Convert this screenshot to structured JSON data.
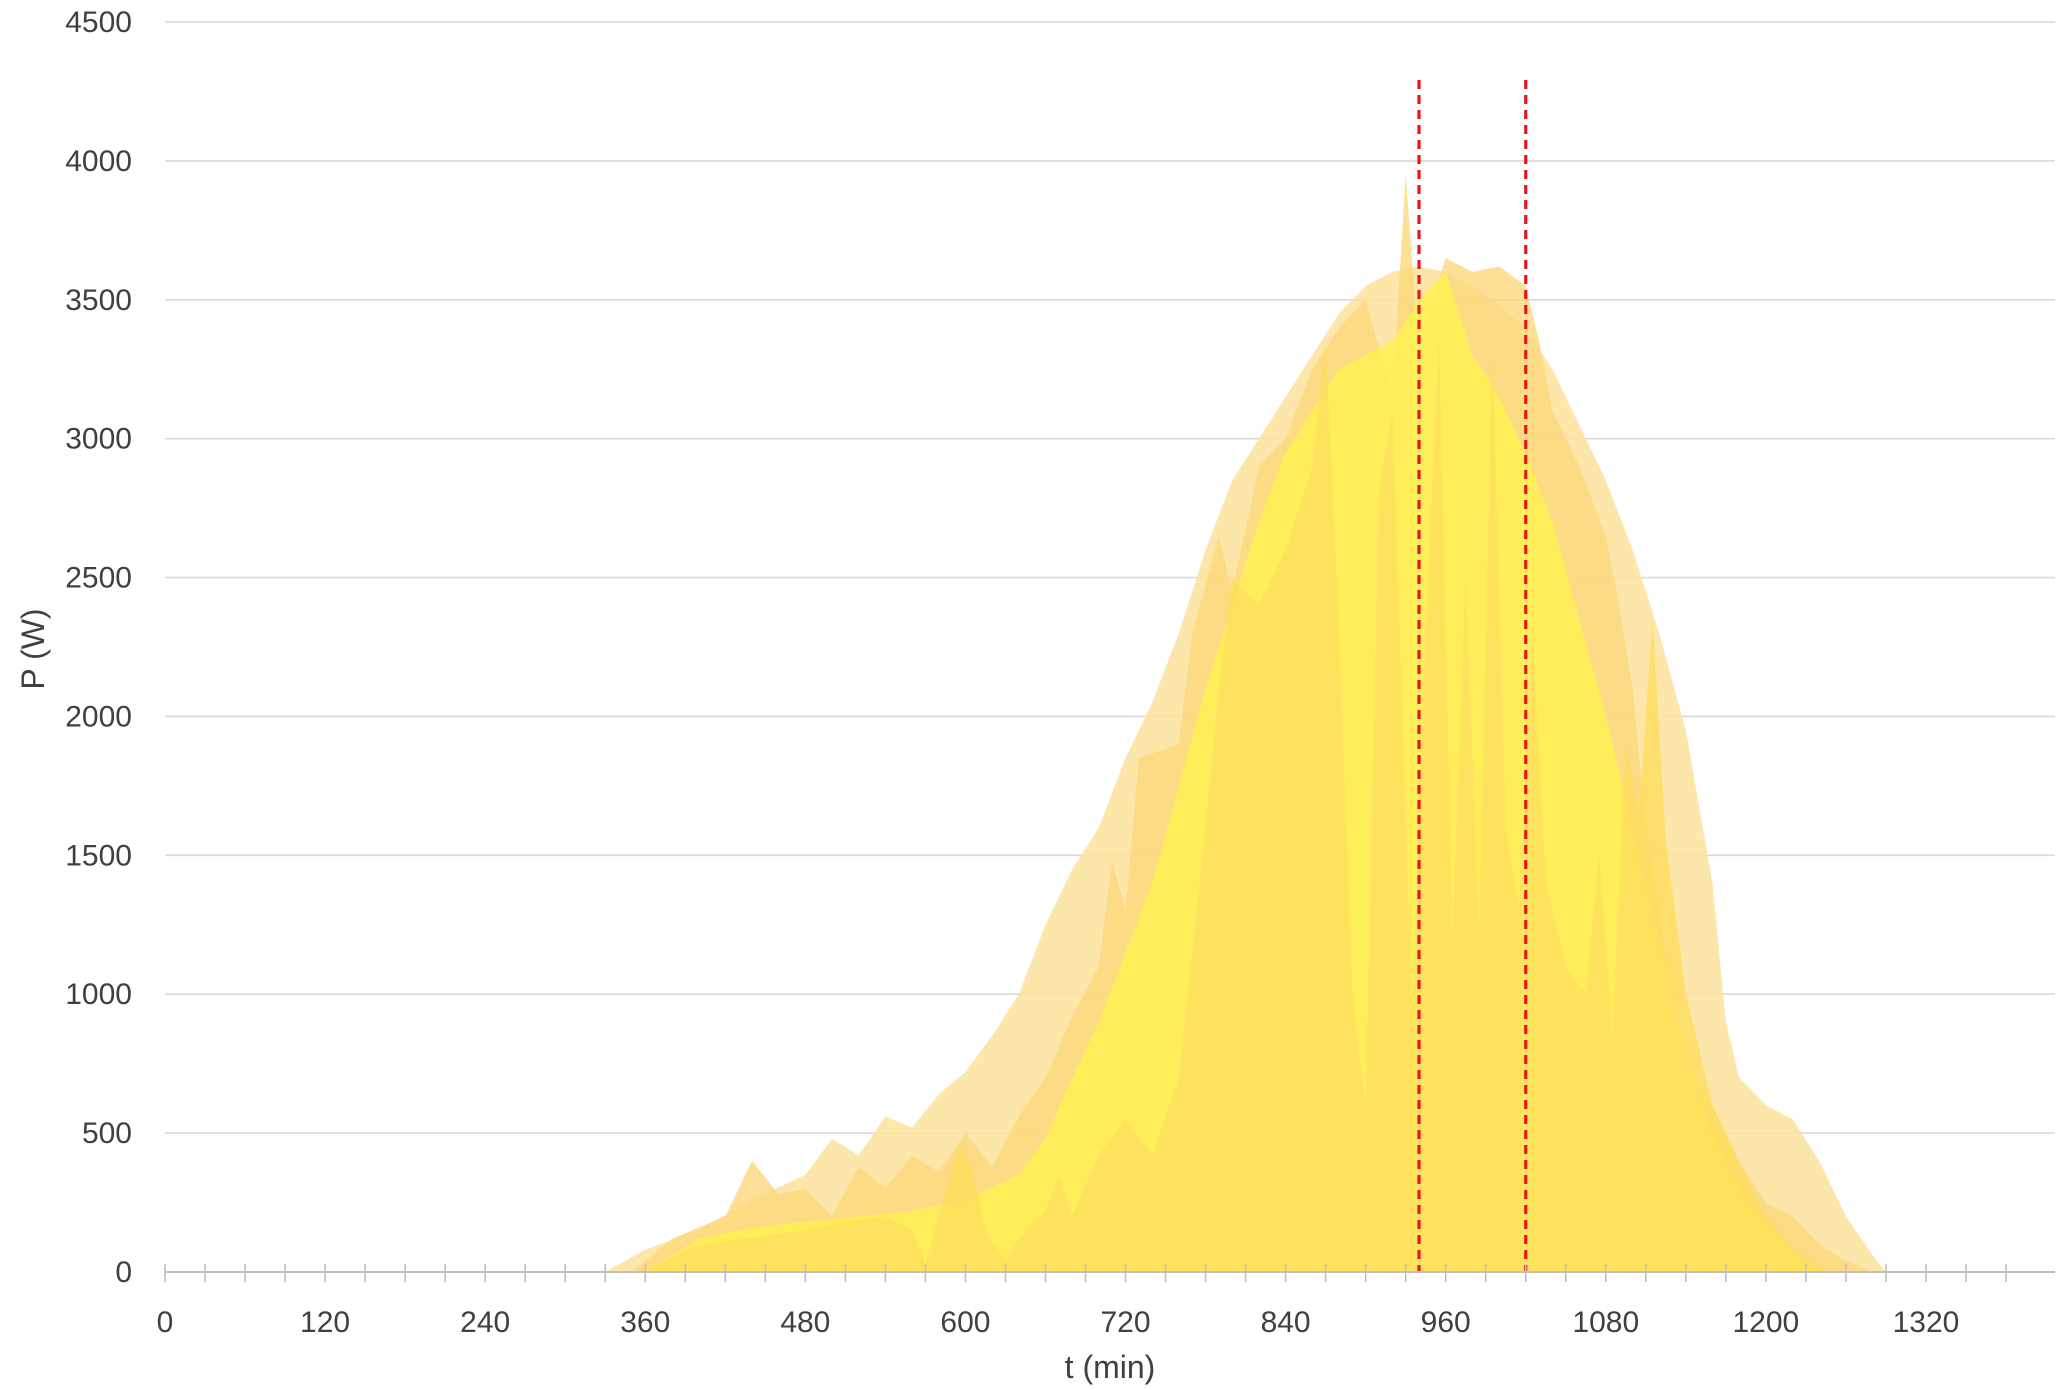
{
  "chart_data": {
    "type": "area",
    "title": "",
    "xlabel": "t (min)",
    "ylabel": "P (W)",
    "xlim": [
      0,
      1380
    ],
    "ylim": [
      0,
      4500
    ],
    "x_ticks": [
      "0",
      "120",
      "240",
      "360",
      "480",
      "600",
      "720",
      "840",
      "960",
      "1080",
      "1200",
      "1320"
    ],
    "y_ticks": [
      "0",
      "500",
      "1000",
      "1500",
      "2000",
      "2500",
      "3000",
      "3500",
      "4000",
      "4500"
    ],
    "grid": "horizontal",
    "legend": "none",
    "markers": [
      {
        "x": 940,
        "color": "#e8161b"
      },
      {
        "x": 1020,
        "color": "#e8161b"
      }
    ],
    "series": [
      {
        "color": "#fde29a",
        "points": [
          [
            330,
            0
          ],
          [
            360,
            80
          ],
          [
            400,
            150
          ],
          [
            440,
            260
          ],
          [
            480,
            350
          ],
          [
            500,
            480
          ],
          [
            520,
            420
          ],
          [
            540,
            560
          ],
          [
            560,
            520
          ],
          [
            580,
            640
          ],
          [
            600,
            720
          ],
          [
            620,
            850
          ],
          [
            640,
            1000
          ],
          [
            660,
            1250
          ],
          [
            680,
            1450
          ],
          [
            700,
            1600
          ],
          [
            720,
            1850
          ],
          [
            740,
            2050
          ],
          [
            760,
            2300
          ],
          [
            780,
            2600
          ],
          [
            800,
            2850
          ],
          [
            820,
            3000
          ],
          [
            840,
            3150
          ],
          [
            860,
            3300
          ],
          [
            880,
            3450
          ],
          [
            900,
            3550
          ],
          [
            920,
            3600
          ],
          [
            940,
            3620
          ],
          [
            960,
            3600
          ],
          [
            980,
            3550
          ],
          [
            1000,
            3480
          ],
          [
            1020,
            3400
          ],
          [
            1040,
            3250
          ],
          [
            1060,
            3050
          ],
          [
            1080,
            2850
          ],
          [
            1100,
            2600
          ],
          [
            1120,
            2300
          ],
          [
            1140,
            1950
          ],
          [
            1160,
            1400
          ],
          [
            1170,
            900
          ],
          [
            1180,
            700
          ],
          [
            1200,
            600
          ],
          [
            1220,
            550
          ],
          [
            1240,
            400
          ],
          [
            1260,
            200
          ],
          [
            1280,
            60
          ],
          [
            1290,
            0
          ]
        ]
      },
      {
        "color": "#fdd87a",
        "points": [
          [
            350,
            0
          ],
          [
            380,
            120
          ],
          [
            420,
            200
          ],
          [
            440,
            400
          ],
          [
            460,
            280
          ],
          [
            480,
            300
          ],
          [
            500,
            200
          ],
          [
            520,
            380
          ],
          [
            540,
            300
          ],
          [
            560,
            420
          ],
          [
            580,
            360
          ],
          [
            600,
            500
          ],
          [
            620,
            380
          ],
          [
            640,
            560
          ],
          [
            660,
            700
          ],
          [
            680,
            920
          ],
          [
            700,
            1100
          ],
          [
            710,
            1480
          ],
          [
            720,
            1300
          ],
          [
            730,
            1850
          ],
          [
            760,
            1900
          ],
          [
            770,
            2300
          ],
          [
            790,
            2650
          ],
          [
            800,
            2450
          ],
          [
            820,
            2900
          ],
          [
            840,
            3000
          ],
          [
            860,
            3250
          ],
          [
            880,
            3400
          ],
          [
            900,
            3500
          ],
          [
            920,
            3150
          ],
          [
            930,
            3950
          ],
          [
            940,
            3300
          ],
          [
            950,
            3500
          ],
          [
            960,
            3650
          ],
          [
            980,
            3600
          ],
          [
            1000,
            3620
          ],
          [
            1020,
            3550
          ],
          [
            1030,
            3350
          ],
          [
            1040,
            3100
          ],
          [
            1060,
            2900
          ],
          [
            1080,
            2650
          ],
          [
            1090,
            2400
          ],
          [
            1100,
            2100
          ],
          [
            1110,
            1600
          ],
          [
            1120,
            1300
          ],
          [
            1130,
            900
          ],
          [
            1140,
            700
          ],
          [
            1160,
            600
          ],
          [
            1180,
            400
          ],
          [
            1200,
            250
          ],
          [
            1220,
            200
          ],
          [
            1240,
            100
          ],
          [
            1260,
            40
          ],
          [
            1280,
            0
          ]
        ]
      },
      {
        "color": "#fff14f",
        "points": [
          [
            360,
            0
          ],
          [
            400,
            120
          ],
          [
            440,
            160
          ],
          [
            480,
            180
          ],
          [
            520,
            200
          ],
          [
            560,
            220
          ],
          [
            600,
            260
          ],
          [
            640,
            350
          ],
          [
            660,
            480
          ],
          [
            680,
            700
          ],
          [
            700,
            900
          ],
          [
            720,
            1150
          ],
          [
            740,
            1400
          ],
          [
            760,
            1750
          ],
          [
            780,
            2100
          ],
          [
            800,
            2400
          ],
          [
            820,
            2700
          ],
          [
            840,
            2950
          ],
          [
            860,
            3100
          ],
          [
            880,
            3250
          ],
          [
            900,
            3300
          ],
          [
            920,
            3350
          ],
          [
            940,
            3500
          ],
          [
            960,
            3600
          ],
          [
            980,
            3300
          ],
          [
            1000,
            3150
          ],
          [
            1020,
            2950
          ],
          [
            1040,
            2700
          ],
          [
            1060,
            2350
          ],
          [
            1080,
            2000
          ],
          [
            1100,
            1600
          ],
          [
            1120,
            1200
          ],
          [
            1140,
            800
          ],
          [
            1160,
            500
          ],
          [
            1180,
            300
          ],
          [
            1200,
            180
          ],
          [
            1220,
            80
          ],
          [
            1240,
            0
          ]
        ]
      },
      {
        "color": "#fedd5e",
        "points": [
          [
            360,
            0
          ],
          [
            390,
            80
          ],
          [
            420,
            110
          ],
          [
            450,
            130
          ],
          [
            480,
            150
          ],
          [
            510,
            180
          ],
          [
            540,
            200
          ],
          [
            560,
            150
          ],
          [
            570,
            30
          ],
          [
            580,
            200
          ],
          [
            595,
            450
          ],
          [
            605,
            380
          ],
          [
            615,
            150
          ],
          [
            630,
            40
          ],
          [
            640,
            120
          ],
          [
            660,
            220
          ],
          [
            670,
            350
          ],
          [
            680,
            200
          ],
          [
            700,
            420
          ],
          [
            720,
            550
          ],
          [
            740,
            420
          ],
          [
            760,
            700
          ],
          [
            780,
            1600
          ],
          [
            790,
            2100
          ],
          [
            800,
            2500
          ],
          [
            820,
            2400
          ],
          [
            840,
            2600
          ],
          [
            860,
            2900
          ],
          [
            870,
            3350
          ],
          [
            880,
            2300
          ],
          [
            890,
            1000
          ],
          [
            900,
            600
          ],
          [
            910,
            2800
          ],
          [
            920,
            3100
          ],
          [
            935,
            900
          ],
          [
            945,
            2300
          ],
          [
            955,
            3350
          ],
          [
            965,
            1200
          ],
          [
            975,
            2500
          ],
          [
            985,
            1200
          ],
          [
            995,
            3300
          ],
          [
            1005,
            1600
          ],
          [
            1015,
            1300
          ],
          [
            1025,
            2300
          ],
          [
            1035,
            1400
          ],
          [
            1050,
            1100
          ],
          [
            1065,
            1000
          ],
          [
            1075,
            1500
          ],
          [
            1085,
            850
          ],
          [
            1095,
            1900
          ],
          [
            1105,
            1650
          ],
          [
            1115,
            2350
          ],
          [
            1125,
            1550
          ],
          [
            1140,
            1000
          ],
          [
            1160,
            600
          ],
          [
            1180,
            380
          ],
          [
            1200,
            200
          ],
          [
            1220,
            80
          ],
          [
            1240,
            20
          ],
          [
            1250,
            0
          ]
        ]
      }
    ]
  }
}
